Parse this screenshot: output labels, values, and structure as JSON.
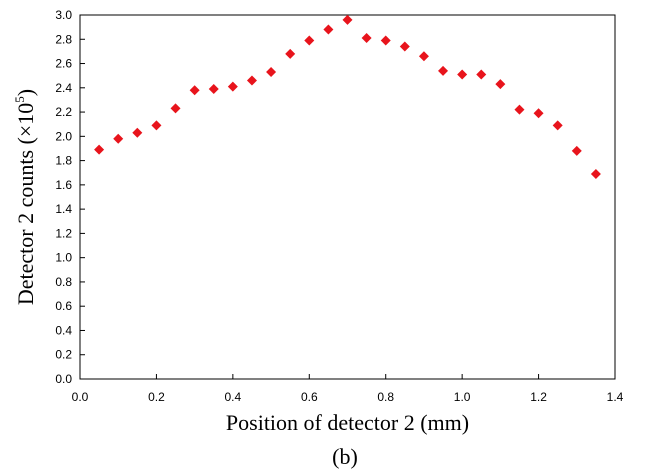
{
  "chart_data": {
    "type": "scatter",
    "title": "",
    "xlabel": "Position of detector 2 (mm)",
    "ylabel": "Detector 2 counts (×10",
    "ylabel_superscript": "5",
    "ylabel_close": ")",
    "caption": "(b)",
    "xlim": [
      0.0,
      1.4
    ],
    "ylim": [
      0.0,
      3.0
    ],
    "xticks": [
      0.0,
      0.2,
      0.4,
      0.6,
      0.8,
      1.0,
      1.2,
      1.4
    ],
    "xtick_labels": [
      "0.0",
      "0.2",
      "0.4",
      "0.6",
      "0.8",
      "1.0",
      "1.2",
      "1.4"
    ],
    "yticks": [
      0.0,
      0.2,
      0.4,
      0.6,
      0.8,
      1.0,
      1.2,
      1.4,
      1.6,
      1.8,
      2.0,
      2.2,
      2.4,
      2.6,
      2.8,
      3.0
    ],
    "ytick_labels": [
      "0.0",
      "0.2",
      "0.4",
      "0.6",
      "0.8",
      "1.0",
      "1.2",
      "1.4",
      "1.6",
      "1.8",
      "2.0",
      "2.2",
      "2.4",
      "2.6",
      "2.8",
      "3.0"
    ],
    "grid": false,
    "legend": "none",
    "marker": "diamond",
    "marker_color": "#e8141c",
    "series": [
      {
        "x": [
          0.05,
          0.1,
          0.15,
          0.2,
          0.25,
          0.3,
          0.35,
          0.4,
          0.45,
          0.5,
          0.55,
          0.6,
          0.65,
          0.7,
          0.75,
          0.8,
          0.85,
          0.9,
          0.95,
          1.0,
          1.05,
          1.1,
          1.15,
          1.2,
          1.25,
          1.3,
          1.35
        ],
        "y": [
          1.89,
          1.98,
          2.03,
          2.09,
          2.23,
          2.38,
          2.39,
          2.41,
          2.46,
          2.53,
          2.68,
          2.79,
          2.88,
          2.96,
          2.81,
          2.79,
          2.74,
          2.66,
          2.54,
          2.51,
          2.51,
          2.43,
          2.22,
          2.19,
          2.09,
          1.88,
          1.69
        ]
      }
    ]
  }
}
